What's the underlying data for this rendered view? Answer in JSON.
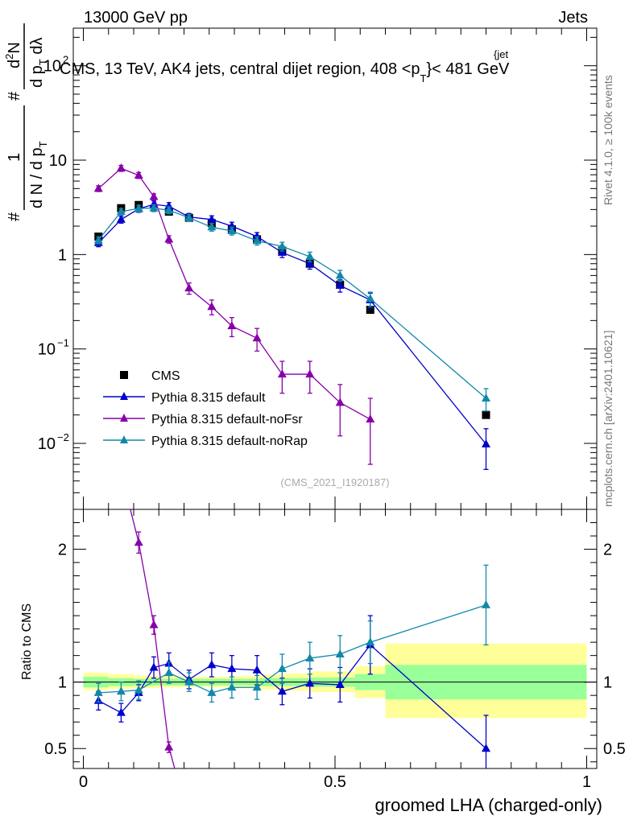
{
  "header": {
    "left": "13000 GeV pp",
    "right": "Jets"
  },
  "side_labels": {
    "rivet": "Rivet 4.1.0, ≥ 100k events",
    "mcplots": "mcplots.cern.ch [arXiv:2401.10621]"
  },
  "chart_data": [
    {
      "type": "scatter",
      "title": "CMS, 13 TeV, AK4 jets, central dijet region, 408 < p_T^{jet} < 481 GeV",
      "title_parts": {
        "main": "CMS, 13 TeV, AK4 jets, central dijet region, 408 <p",
        "sup": "{jet",
        "sub": "T",
        "tail": "}< 481 GeV"
      },
      "watermark": "(CMS_2021_I1920187)",
      "xlabel": "groomed LHA (charged-only)",
      "ylabel": "1/dN/dp_T # d²N/dp_T dλ",
      "ylabel_parts": {
        "hash1": "#",
        "num": "1",
        "den": "d N / d p",
        "den_sub": "T",
        "hash2": "#",
        "num2": "d",
        "num2_sup": "2",
        "num2_tail": "N",
        "den2": "d p",
        "den2_sub": "T",
        "den2_tail": " dλ"
      },
      "yscale": "log",
      "xlim": [
        -0.02,
        1.02
      ],
      "ylim": [
        0.002,
        250
      ],
      "y_ticks": [
        {
          "v": 0.01,
          "base": "10",
          "exp": "−2"
        },
        {
          "v": 0.1,
          "base": "10",
          "exp": "−1"
        },
        {
          "v": 1,
          "base": "1",
          "exp": ""
        },
        {
          "v": 10,
          "base": "10",
          "exp": ""
        },
        {
          "v": 100,
          "base": "10",
          "exp": "2"
        }
      ],
      "x_ticks": [
        {
          "v": 0,
          "label": "0"
        },
        {
          "v": 0.5,
          "label": "0.5"
        },
        {
          "v": 1,
          "label": "1"
        }
      ],
      "legend_position": "bottom-left",
      "series": [
        {
          "name": "CMS",
          "marker": "square",
          "color": "#000000",
          "line": false,
          "x": [
            0.03,
            0.075,
            0.11,
            0.17,
            0.21,
            0.255,
            0.295,
            0.345,
            0.395,
            0.45,
            0.51,
            0.57,
            0.8
          ],
          "y": [
            1.55,
            3.1,
            3.35,
            2.85,
            2.45,
            2.15,
            1.85,
            1.45,
            1.1,
            0.8,
            0.48,
            0.26,
            0.02
          ],
          "err": [
            0,
            0,
            0,
            0,
            0,
            0,
            0,
            0,
            0,
            0,
            0,
            0,
            0
          ]
        },
        {
          "name": "Pythia 8.315 default",
          "marker": "triangle",
          "color": "#0000cc",
          "line": true,
          "x": [
            0.03,
            0.075,
            0.11,
            0.14,
            0.17,
            0.21,
            0.255,
            0.295,
            0.345,
            0.395,
            0.45,
            0.51,
            0.57,
            0.8
          ],
          "y": [
            1.33,
            2.35,
            3.05,
            3.4,
            3.25,
            2.5,
            2.35,
            2.0,
            1.55,
            1.05,
            0.8,
            0.47,
            0.33,
            0.0098
          ],
          "err": [
            0.12,
            0.2,
            0.25,
            0.3,
            0.3,
            0.22,
            0.22,
            0.2,
            0.16,
            0.12,
            0.1,
            0.07,
            0.06,
            0.0045
          ]
        },
        {
          "name": "Pythia 8.315 default-noFsr",
          "marker": "triangle",
          "color": "#8800aa",
          "line": true,
          "x": [
            0.03,
            0.075,
            0.11,
            0.14,
            0.17,
            0.21,
            0.255,
            0.295,
            0.345,
            0.395,
            0.45,
            0.51,
            0.57
          ],
          "y": [
            5.0,
            8.2,
            6.9,
            4.1,
            1.45,
            0.44,
            0.28,
            0.175,
            0.13,
            0.054,
            0.054,
            0.027,
            0.018
          ],
          "err": [
            0.35,
            0.6,
            0.5,
            0.3,
            0.13,
            0.06,
            0.05,
            0.04,
            0.035,
            0.02,
            0.02,
            0.015,
            0.012
          ]
        },
        {
          "name": "Pythia 8.315 default-noRap",
          "marker": "triangle",
          "color": "#1188aa",
          "line": true,
          "x": [
            0.03,
            0.075,
            0.11,
            0.14,
            0.17,
            0.21,
            0.255,
            0.295,
            0.345,
            0.395,
            0.45,
            0.51,
            0.57,
            0.8
          ],
          "y": [
            1.42,
            2.85,
            3.08,
            3.1,
            2.95,
            2.45,
            1.95,
            1.78,
            1.4,
            1.22,
            0.95,
            0.6,
            0.34,
            0.03
          ],
          "err": [
            0.12,
            0.22,
            0.25,
            0.25,
            0.25,
            0.2,
            0.18,
            0.17,
            0.14,
            0.13,
            0.11,
            0.08,
            0.06,
            0.008
          ]
        }
      ]
    },
    {
      "type": "scatter",
      "title": "Ratio to CMS",
      "ylabel": "Ratio to CMS",
      "xlabel": "groomed LHA (charged-only)",
      "xlim": [
        -0.02,
        1.02
      ],
      "ylim": [
        0.35,
        2.3
      ],
      "y_ticks": [
        {
          "v": 0.5,
          "label": "0.5"
        },
        {
          "v": 1,
          "label": "1"
        },
        {
          "v": 2,
          "label": "2"
        }
      ],
      "x_ticks": [
        {
          "v": 0,
          "label": "0"
        },
        {
          "v": 0.5,
          "label": "0.5"
        },
        {
          "v": 1,
          "label": "1"
        }
      ],
      "bands": [
        {
          "x0": 0.0,
          "x1": 0.05,
          "y_inner": [
            0.96,
            1.04
          ],
          "y_outer": [
            0.94,
            1.07
          ]
        },
        {
          "x0": 0.05,
          "x1": 0.1,
          "y_inner": [
            0.97,
            1.03
          ],
          "y_outer": [
            0.95,
            1.06
          ]
        },
        {
          "x0": 0.1,
          "x1": 0.15,
          "y_inner": [
            0.975,
            1.025
          ],
          "y_outer": [
            0.955,
            1.05
          ]
        },
        {
          "x0": 0.15,
          "x1": 0.2,
          "y_inner": [
            0.975,
            1.025
          ],
          "y_outer": [
            0.96,
            1.045
          ]
        },
        {
          "x0": 0.2,
          "x1": 0.25,
          "y_inner": [
            0.975,
            1.025
          ],
          "y_outer": [
            0.965,
            1.04
          ]
        },
        {
          "x0": 0.25,
          "x1": 0.3,
          "y_inner": [
            0.975,
            1.025
          ],
          "y_outer": [
            0.96,
            1.04
          ]
        },
        {
          "x0": 0.3,
          "x1": 0.35,
          "y_inner": [
            0.975,
            1.025
          ],
          "y_outer": [
            0.955,
            1.045
          ]
        },
        {
          "x0": 0.35,
          "x1": 0.4,
          "y_inner": [
            0.97,
            1.03
          ],
          "y_outer": [
            0.945,
            1.055
          ]
        },
        {
          "x0": 0.4,
          "x1": 0.45,
          "y_inner": [
            0.97,
            1.03
          ],
          "y_outer": [
            0.935,
            1.065
          ]
        },
        {
          "x0": 0.45,
          "x1": 0.54,
          "y_inner": [
            0.965,
            1.035
          ],
          "y_outer": [
            0.925,
            1.08
          ]
        },
        {
          "x0": 0.54,
          "x1": 0.6,
          "y_inner": [
            0.94,
            1.06
          ],
          "y_outer": [
            0.88,
            1.12
          ]
        },
        {
          "x0": 0.6,
          "x1": 1.0,
          "y_inner": [
            0.87,
            1.13
          ],
          "y_outer": [
            0.73,
            1.29
          ]
        }
      ],
      "series": [
        {
          "name": "Pythia 8.315 default",
          "marker": "triangle",
          "color": "#0000cc",
          "x": [
            0.03,
            0.075,
            0.11,
            0.14,
            0.17,
            0.21,
            0.255,
            0.295,
            0.345,
            0.395,
            0.45,
            0.51,
            0.57,
            0.8
          ],
          "y": [
            0.86,
            0.77,
            0.92,
            1.11,
            1.14,
            1.02,
            1.13,
            1.1,
            1.09,
            0.93,
            0.99,
            0.98,
            1.28,
            0.5
          ],
          "err": [
            0.07,
            0.07,
            0.06,
            0.08,
            0.08,
            0.07,
            0.09,
            0.1,
            0.11,
            0.1,
            0.11,
            0.13,
            0.22,
            0.25
          ]
        },
        {
          "name": "Pythia 8.315 default-noFsr",
          "marker": "triangle",
          "color": "#8800aa",
          "x": [
            0.11,
            0.14,
            0.17
          ],
          "y": [
            2.05,
            1.43,
            0.51
          ],
          "err": [
            0.08,
            0.07,
            0.04
          ],
          "curve_x": [
            0.08,
            0.11,
            0.14,
            0.17,
            0.185
          ],
          "curve_y": [
            2.5,
            2.05,
            1.43,
            0.51,
            0.3
          ]
        },
        {
          "name": "Pythia 8.315 default-noRap",
          "marker": "triangle",
          "color": "#1188aa",
          "x": [
            0.03,
            0.075,
            0.11,
            0.17,
            0.21,
            0.255,
            0.295,
            0.345,
            0.395,
            0.45,
            0.51,
            0.57,
            0.8
          ],
          "y": [
            0.92,
            0.93,
            0.94,
            1.07,
            1.0,
            0.92,
            0.96,
            0.96,
            1.1,
            1.18,
            1.21,
            1.3,
            1.58
          ],
          "err": [
            0.07,
            0.07,
            0.07,
            0.08,
            0.07,
            0.07,
            0.08,
            0.09,
            0.11,
            0.12,
            0.14,
            0.16,
            0.3
          ]
        }
      ]
    }
  ]
}
